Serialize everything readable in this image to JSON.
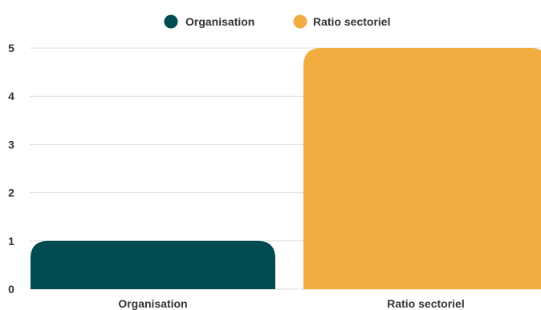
{
  "chart_data": {
    "type": "bar",
    "categories": [
      "Organisation",
      "Ratio sectoriel"
    ],
    "series": [
      {
        "name": "Organisation",
        "values": [
          1,
          null
        ],
        "color": "#004a52"
      },
      {
        "name": "Ratio sectoriel",
        "values": [
          null,
          5
        ],
        "color": "#f1ad3f"
      }
    ],
    "values": [
      1,
      5
    ],
    "title": "",
    "xlabel": "",
    "ylabel": "",
    "ylim": [
      0,
      5
    ],
    "yticks": [
      0,
      1,
      2,
      3,
      4,
      5
    ],
    "grid": true,
    "legend": "top-center"
  }
}
